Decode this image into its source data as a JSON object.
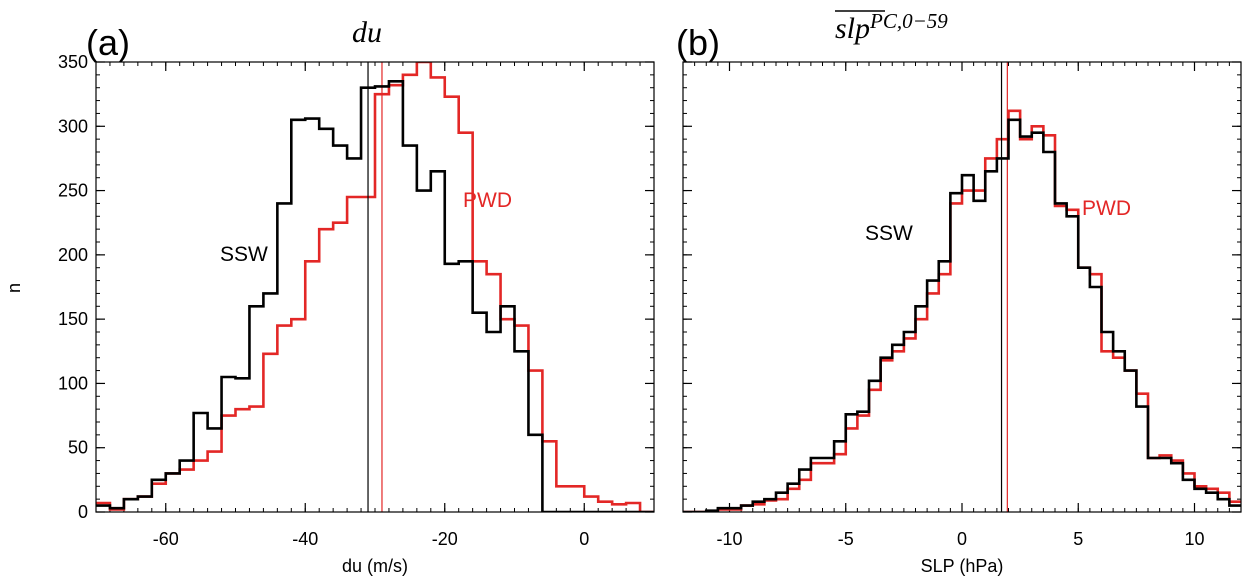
{
  "figure": {
    "panels": [
      {
        "letter": "(a)",
        "title_main": "du",
        "title_sup": "",
        "xlabel": "du (m/s)",
        "ylabel": "n"
      },
      {
        "letter": "(b)",
        "title_main": "slp",
        "title_sup": "PC,0−59",
        "xlabel": "SLP (hPa)",
        "ylabel": ""
      }
    ]
  },
  "chart_data": [
    {
      "type": "histogram",
      "title": "du",
      "xlabel": "du (m/s)",
      "ylabel": "n",
      "xlim": [
        -70,
        10
      ],
      "ylim": [
        0,
        350
      ],
      "x_ticks": [
        -60,
        -40,
        -20,
        0
      ],
      "y_ticks": [
        0,
        50,
        100,
        150,
        200,
        250,
        300,
        350
      ],
      "bin_edges": [
        -70,
        -68,
        -66,
        -64,
        -62,
        -60,
        -58,
        -56,
        -54,
        -52,
        -50,
        -48,
        -46,
        -44,
        -42,
        -40,
        -38,
        -36,
        -34,
        -32,
        -30,
        -28,
        -26,
        -24,
        -22,
        -20,
        -18,
        -16,
        -14,
        -12,
        -10,
        -8,
        -6,
        -4,
        -2,
        0,
        2,
        4,
        6,
        8,
        10
      ],
      "series": [
        {
          "name": "SSW",
          "color": "#000000",
          "values": [
            5,
            3,
            10,
            12,
            25,
            30,
            40,
            77,
            65,
            105,
            104,
            160,
            170,
            240,
            305,
            306,
            298,
            285,
            275,
            330,
            331,
            335,
            285,
            250,
            265,
            193,
            195,
            155,
            140,
            160,
            125,
            60,
            0,
            0,
            0,
            0,
            0,
            0,
            0,
            0
          ],
          "mean": -31
        }
      ]
    },
    {
      "type": "histogram",
      "title": "slp PC,0−59",
      "xlabel": "SLP (hPa)",
      "ylabel": "n",
      "xlim": [
        -12,
        12
      ],
      "ylim": [
        0,
        350
      ],
      "x_ticks": [
        -10,
        -5,
        0,
        5,
        10
      ],
      "y_ticks": [
        0,
        50,
        100,
        150,
        200,
        250,
        300,
        350
      ],
      "bin_edges": [
        -12,
        -11.5,
        -11,
        -10.5,
        -10,
        -9.5,
        -9,
        -8.5,
        -8,
        -7.5,
        -7,
        -6.5,
        -6,
        -5.5,
        -5,
        -4.5,
        -4,
        -3.5,
        -3,
        -2.5,
        -2,
        -1.5,
        -1,
        -0.5,
        0,
        0.5,
        1,
        1.5,
        2,
        2.5,
        3,
        3.5,
        4,
        4.5,
        5,
        5.5,
        6,
        6.5,
        7,
        7.5,
        8,
        8.5,
        9,
        9.5,
        10,
        10.5,
        11,
        11.5,
        12
      ],
      "series": [
        {
          "name": "SSW",
          "color": "#000000",
          "values": [
            0,
            0,
            1,
            3,
            3,
            5,
            8,
            10,
            15,
            22,
            33,
            42,
            42,
            55,
            76,
            78,
            102,
            120,
            130,
            140,
            160,
            180,
            195,
            248,
            262,
            242,
            265,
            275,
            305,
            292,
            295,
            280,
            240,
            230,
            190,
            175,
            140,
            125,
            110,
            82,
            42,
            42,
            38,
            25,
            18,
            15,
            10,
            5
          ],
          "mean": 1.7
        },
        {
          "name": "PWD",
          "color": "#e32726",
          "values": [
            0,
            0,
            0,
            2,
            2,
            5,
            6,
            9,
            10,
            18,
            25,
            38,
            38,
            45,
            65,
            75,
            95,
            118,
            125,
            135,
            150,
            170,
            185,
            240,
            250,
            250,
            275,
            290,
            312,
            290,
            300,
            293,
            238,
            235,
            190,
            185,
            125,
            120,
            110,
            92,
            42,
            44,
            40,
            30,
            20,
            18,
            15,
            8
          ],
          "mean": 1.95
        }
      ]
    }
  ],
  "panel_a_pwd": {
    "name": "PWD",
    "color": "#e32726",
    "values": [
      7,
      2,
      10,
      12,
      22,
      30,
      33,
      40,
      47,
      75,
      80,
      82,
      123,
      145,
      150,
      195,
      220,
      225,
      245,
      245,
      325,
      332,
      340,
      350,
      338,
      323,
      295,
      195,
      185,
      150,
      145,
      110,
      55,
      20,
      20,
      12,
      8,
      6,
      7,
      0
    ],
    "mean": -29
  },
  "labels": {
    "a_ssw": "SSW",
    "a_pwd": "PWD",
    "b_ssw": "SSW",
    "b_pwd": "PWD"
  }
}
